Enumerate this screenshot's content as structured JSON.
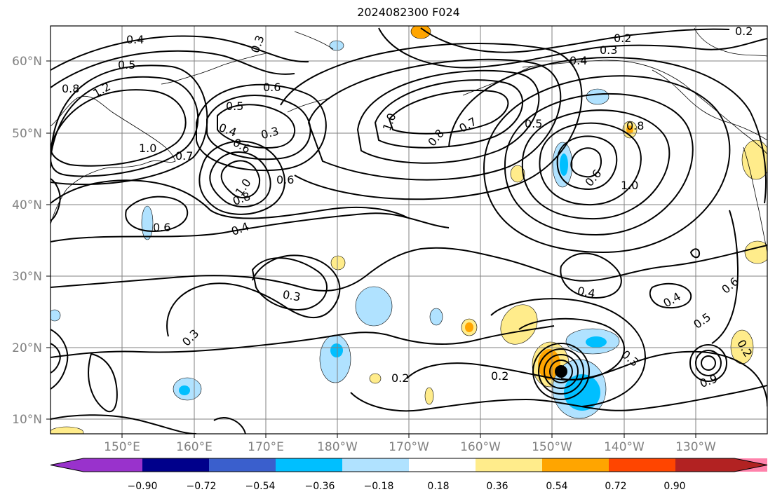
{
  "title": "2024082300 F024",
  "lat_labels": [
    "60°N",
    "50°N",
    "40°N",
    "30°N",
    "20°N",
    "10°N"
  ],
  "lon_labels": [
    "150°E",
    "160°E",
    "170°E",
    "180°W",
    "170°W",
    "160°W",
    "150°W",
    "140°W",
    "130°W"
  ],
  "colorbar": {
    "colors": [
      "#9932cc",
      "#00008b",
      "#3a5fcd",
      "#00bfff",
      "#b0e2ff",
      "#ffffff",
      "#ffec8b",
      "#ffa500",
      "#ff4500",
      "#b22222",
      "#ff82ab"
    ],
    "ticks": [
      "−0.90",
      "−0.72",
      "−0.54",
      "−0.36",
      "−0.18",
      "0.18",
      "0.36",
      "0.54",
      "0.72",
      "0.90"
    ]
  },
  "contour_labels": [
    "0.4",
    "0.3",
    "0.5",
    "0.8",
    "1.2",
    "0.6",
    "0.5",
    "0.4",
    "0.3",
    "0.6",
    "1.0",
    "0.7",
    "0.6",
    "1.0",
    "0.8",
    "0.6",
    "0.4",
    "0.3",
    "0.3",
    "0.2",
    "1.0",
    "0.8",
    "0.7",
    "0.5",
    "0.8",
    "0.2",
    "0.3",
    "0.4",
    "0.6",
    "1.0",
    "0.4",
    "0.2",
    "0.2",
    "0.4",
    "0.6",
    "0.5",
    "0.3",
    "0.2",
    "0.9"
  ]
}
